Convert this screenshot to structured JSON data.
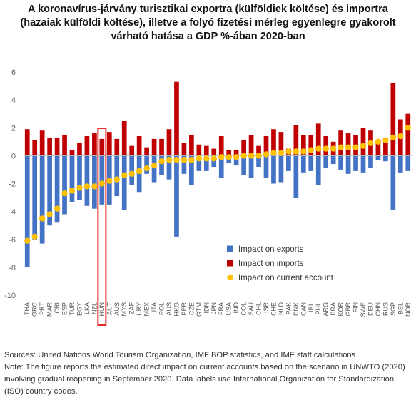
{
  "title_lines": [
    "A koronavírus-járvány turisztikai exportra (külföldiek költése) és importra",
    "(hazaiak külföldi költése), illetve a folyó fizetési mérleg egyenlegre gyakorolt",
    "várható hatása a GDP %-ában 2020-ban"
  ],
  "source_lines": [
    "Sources: United Nations World Tourism Organization, IMF BOP statistics, and IMF staff calculations.",
    "Note: The figure reports the estimated direct impact on current accounts based on the scenario in UNWTO (2020)",
    "involving gradual reopening in September 2020. Data labels use International Organization for Standardization",
    "(ISO) country codes."
  ],
  "colors": {
    "exports": "#4472C4",
    "imports": "#C00000",
    "current_account": "#FFC000",
    "highlight": "#E8302A"
  },
  "highlight_category": "HUN",
  "chart_data": {
    "type": "bar",
    "title": "",
    "xlabel": "",
    "ylabel": "",
    "ylim": [
      -10,
      6
    ],
    "yticks": [
      -10,
      -8,
      -6,
      -4,
      -2,
      0,
      2,
      4,
      6
    ],
    "grid": false,
    "legend_position": "lower-right",
    "categories": [
      "THA",
      "GRC",
      "PRT",
      "MAR",
      "CRI",
      "ESP",
      "TUR",
      "EGY",
      "LKA",
      "NZL",
      "HUN",
      "AUT",
      "AUS",
      "MYS",
      "ZAF",
      "URY",
      "MEX",
      "ITA",
      "POL",
      "AUS",
      "HKG",
      "PER",
      "CZE",
      "GTM",
      "IDN",
      "JPN",
      "FRA",
      "USA",
      "IND",
      "COL",
      "SAU",
      "CHL",
      "ISR",
      "CHE",
      "NLD",
      "PAK",
      "DNK",
      "CAN",
      "IRL",
      "PHL",
      "ARG",
      "BRA",
      "KOR",
      "GBR",
      "FIN",
      "SWE",
      "DEU",
      "CHN",
      "RUS",
      "SGP",
      "BEL",
      "NOR"
    ],
    "series": [
      {
        "name": "Impact on exports",
        "type": "bar",
        "values": [
          -8.0,
          -6.0,
          -6.3,
          -5.0,
          -4.8,
          -4.2,
          -3.3,
          -3.2,
          -3.6,
          -3.8,
          -3.5,
          -3.5,
          -2.9,
          -3.9,
          -2.1,
          -2.6,
          -1.3,
          -1.9,
          -1.4,
          -1.7,
          -5.8,
          -1.3,
          -2.1,
          -1.1,
          -1.1,
          -0.8,
          -1.6,
          -0.5,
          -0.7,
          -1.4,
          -1.6,
          -0.8,
          -1.6,
          -2.0,
          -1.9,
          -1.1,
          -3.0,
          -1.2,
          -1.1,
          -2.1,
          -0.9,
          -0.6,
          -1.0,
          -1.3,
          -1.1,
          -1.2,
          -0.9,
          -0.3,
          -0.4,
          -3.9,
          -1.2,
          -1.1
        ]
      },
      {
        "name": "Impact on imports",
        "type": "bar",
        "values": [
          1.9,
          1.1,
          1.8,
          1.3,
          1.3,
          1.5,
          0.4,
          0.9,
          1.4,
          1.6,
          1.2,
          1.7,
          1.2,
          2.5,
          0.7,
          1.4,
          0.6,
          1.2,
          1.2,
          1.9,
          5.3,
          0.9,
          1.5,
          0.8,
          0.7,
          0.5,
          1.4,
          0.4,
          0.4,
          1.1,
          1.5,
          0.7,
          1.4,
          1.9,
          1.7,
          0.5,
          2.2,
          1.5,
          1.5,
          2.3,
          1.4,
          1.0,
          1.8,
          1.6,
          1.5,
          2.0,
          1.8,
          0.9,
          1.3,
          5.2,
          2.6,
          3.0
        ]
      },
      {
        "name": "Impact on current account",
        "type": "scatter",
        "values": [
          -6.1,
          -5.8,
          -4.5,
          -4.2,
          -3.8,
          -2.7,
          -2.5,
          -2.3,
          -2.2,
          -2.2,
          -2.0,
          -1.8,
          -1.7,
          -1.4,
          -1.3,
          -1.1,
          -0.9,
          -0.7,
          -0.4,
          -0.3,
          -0.3,
          -0.3,
          -0.3,
          -0.2,
          -0.2,
          -0.2,
          -0.1,
          -0.1,
          -0.1,
          0.0,
          0.0,
          0.0,
          0.1,
          0.2,
          0.2,
          0.3,
          0.3,
          0.3,
          0.4,
          0.5,
          0.5,
          0.5,
          0.6,
          0.6,
          0.6,
          0.7,
          0.9,
          1.0,
          1.1,
          1.3,
          1.4,
          2.0
        ]
      }
    ]
  }
}
